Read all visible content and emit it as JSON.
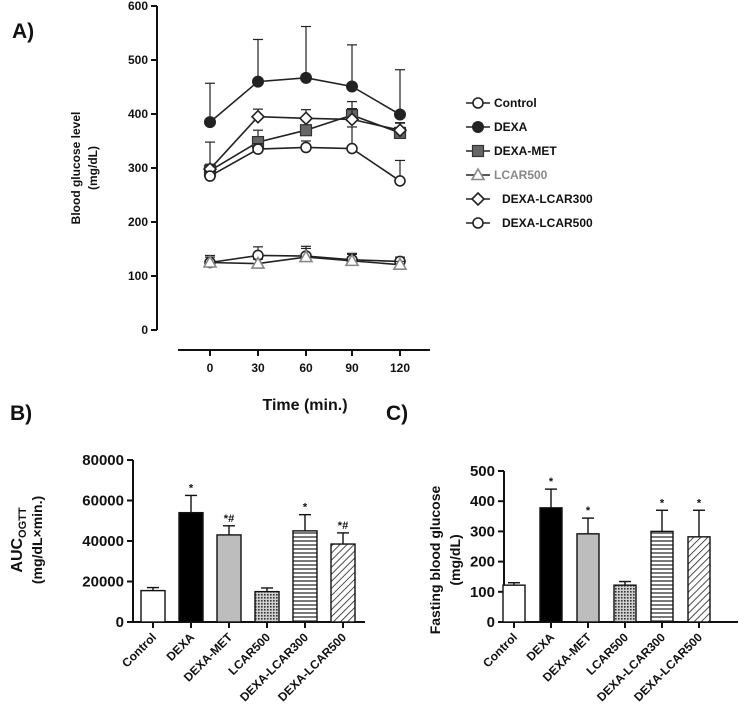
{
  "panels": {
    "a": "A)",
    "b": "B)",
    "c": "C)"
  },
  "chart_data": [
    {
      "type": "line",
      "title": "",
      "xlabel": "Time (min.)",
      "ylabel_line1": "Blood glucose level",
      "ylabel_line2": "(mg/dL)",
      "x": [
        0,
        30,
        60,
        90,
        120
      ],
      "x_tick_labels": [
        "0",
        "30",
        "60",
        "90",
        "120"
      ],
      "ylim": [
        0,
        600
      ],
      "y_ticks": [
        0,
        100,
        200,
        300,
        400,
        500,
        600
      ],
      "y_tick_labels": [
        "0",
        "100",
        "200",
        "300",
        "400",
        "500",
        "600"
      ],
      "legend_position": "right",
      "series": [
        {
          "name": "Control",
          "marker": "circle-open",
          "color": "#222222",
          "values": [
            125,
            138,
            137,
            130,
            127
          ],
          "errors": [
            13,
            16,
            14,
            12,
            8
          ]
        },
        {
          "name": "DEXA",
          "marker": "circle-filled",
          "color": "#222222",
          "values": [
            385,
            460,
            467,
            451,
            399
          ],
          "errors": [
            72,
            78,
            95,
            77,
            83
          ]
        },
        {
          "name": "DEXA-MET",
          "marker": "square",
          "color": "#666666",
          "values": [
            295,
            348,
            370,
            398,
            365
          ],
          "errors": [
            12,
            22,
            24,
            25,
            18
          ]
        },
        {
          "name": "LCAR500",
          "marker": "triangle-open",
          "color": "#888888",
          "values": [
            125,
            123,
            135,
            128,
            121
          ],
          "errors": [
            10,
            8,
            20,
            12,
            6
          ]
        },
        {
          "name": "DEXA-LCAR300",
          "marker": "diamond-open",
          "color": "#222222",
          "values": [
            298,
            395,
            392,
            390,
            370
          ],
          "errors": [
            50,
            14,
            16,
            20,
            14
          ]
        },
        {
          "name": "DEXA-LCAR500",
          "marker": "circle-open",
          "color": "#222222",
          "values": [
            285,
            335,
            338,
            336,
            276
          ],
          "errors": [
            8,
            10,
            12,
            40,
            38
          ]
        }
      ]
    },
    {
      "type": "bar",
      "title": "",
      "ylabel_main": "AUC",
      "ylabel_sub": "OGTT",
      "ylabel_line2": "(mg/dL×min.)",
      "categories": [
        "Control",
        "DEXA",
        "DEXA-MET",
        "LCAR500",
        "DEXA-LCAR300",
        "DEXA-LCAR500"
      ],
      "values": [
        15500,
        54000,
        43000,
        15000,
        45000,
        38500
      ],
      "errors": [
        1500,
        8500,
        4500,
        1800,
        8000,
        5500
      ],
      "annotations": [
        "",
        "*",
        "*#",
        "",
        "*",
        "*#"
      ],
      "fills": [
        "white",
        "black",
        "gray",
        "dotted",
        "hlines",
        "diagonal"
      ],
      "ylim": [
        0,
        80000
      ],
      "y_ticks": [
        0,
        20000,
        40000,
        60000,
        80000
      ],
      "y_tick_labels": [
        "0",
        "20000",
        "40000",
        "60000",
        "80000"
      ]
    },
    {
      "type": "bar",
      "title": "",
      "ylabel_line1": "Fasting blood glucose",
      "ylabel_line2": "(mg/dL)",
      "categories": [
        "Control",
        "DEXA",
        "DEXA-MET",
        "LCAR500",
        "DEXA-LCAR300",
        "DEXA-LCAR500"
      ],
      "values": [
        122,
        378,
        292,
        122,
        300,
        282
      ],
      "errors": [
        8,
        62,
        52,
        12,
        70,
        88
      ],
      "annotations": [
        "",
        "*",
        "*",
        "",
        "*",
        "*"
      ],
      "fills": [
        "white",
        "black",
        "gray",
        "dotted",
        "hlines",
        "diagonal"
      ],
      "ylim": [
        0,
        500
      ],
      "y_ticks": [
        0,
        100,
        200,
        300,
        400,
        500
      ],
      "y_tick_labels": [
        "0",
        "100",
        "200",
        "300",
        "400",
        "500"
      ]
    }
  ]
}
